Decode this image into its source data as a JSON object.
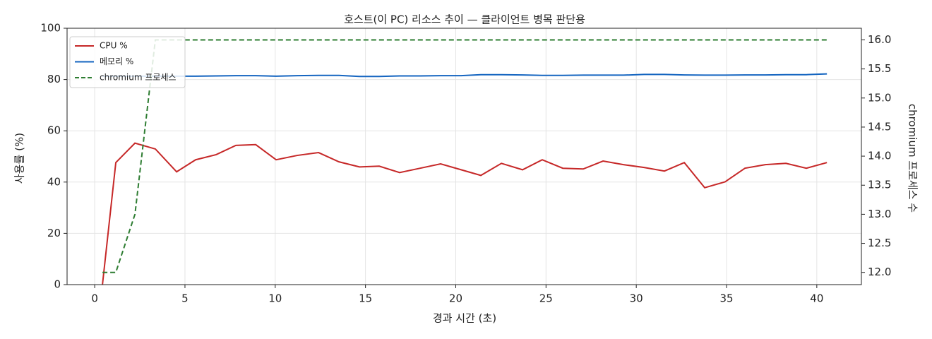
{
  "chart_data": {
    "type": "line",
    "title": "호스트(이 PC) 리소스 추이 — 클라이언트 병목 판단용",
    "xlabel": "경과 시간 (초)",
    "ylabel": "사용률 (%)",
    "y2label": "chromium 프로세스 수",
    "x": [
      0.43,
      1.17,
      2.23,
      3.36,
      4.54,
      5.59,
      6.73,
      7.82,
      8.92,
      10.05,
      11.22,
      12.4,
      13.53,
      14.67,
      15.76,
      16.89,
      18.03,
      19.16,
      20.3,
      21.39,
      22.53,
      23.7,
      24.79,
      25.93,
      27.06,
      28.16,
      29.29,
      30.43,
      31.56,
      32.66,
      33.79,
      34.92,
      36.02,
      37.15,
      38.29,
      39.42,
      40.56
    ],
    "series": [
      {
        "name": "CPU %",
        "color": "#c62828",
        "linestyle": "solid",
        "values": [
          0,
          47.6,
          55.2,
          52.9,
          44.0,
          48.7,
          50.7,
          54.3,
          54.6,
          48.7,
          50.4,
          51.5,
          47.9,
          45.9,
          46.2,
          43.7,
          45.4,
          47.1,
          44.8,
          42.6,
          47.3,
          44.8,
          48.7,
          45.4,
          45.1,
          48.2,
          46.8,
          45.7,
          44.3,
          47.6,
          37.8,
          40.1,
          45.4,
          46.8,
          47.3,
          45.4,
          47.6
        ]
      },
      {
        "name": "메모리 %",
        "color": "#1565c0",
        "linestyle": "solid",
        "values": [
          81.3,
          81.3,
          81.3,
          81.3,
          81.3,
          81.3,
          81.4,
          81.5,
          81.5,
          81.3,
          81.5,
          81.6,
          81.6,
          81.2,
          81.2,
          81.4,
          81.4,
          81.5,
          81.5,
          81.9,
          81.9,
          81.8,
          81.6,
          81.6,
          81.7,
          81.7,
          81.7,
          82.0,
          82.0,
          81.8,
          81.7,
          81.7,
          81.8,
          81.8,
          81.9,
          81.9,
          82.2
        ]
      },
      {
        "name": "chromium 프로세스",
        "color": "#2e7d32",
        "linestyle": "dashed",
        "axis": "y2",
        "values": [
          12,
          12,
          13,
          16,
          16,
          16,
          16,
          16,
          16,
          16,
          16,
          16,
          16,
          16,
          16,
          16,
          16,
          16,
          16,
          16,
          16,
          16,
          16,
          16,
          16,
          16,
          16,
          16,
          16,
          16,
          16,
          16,
          16,
          16,
          16,
          16,
          16
        ]
      }
    ],
    "xlim": [
      -1.53,
      42.47
    ],
    "xticks": [
      0,
      5,
      10,
      15,
      20,
      25,
      30,
      35,
      40
    ],
    "ylim": [
      0,
      100
    ],
    "yticks": [
      0,
      20,
      40,
      60,
      80,
      100
    ],
    "y2lim": [
      11.79,
      16.2
    ],
    "y2ticks": [
      {
        "value": 12,
        "label": "12.0"
      },
      12.5,
      {
        "value": 13,
        "label": "13.0"
      },
      13.5,
      {
        "value": 14,
        "label": "14.0"
      },
      14.5,
      {
        "value": 15,
        "label": "15.0"
      },
      15.5,
      {
        "value": 16,
        "label": "16.0"
      }
    ],
    "grid": true,
    "legend": "upper-left"
  }
}
